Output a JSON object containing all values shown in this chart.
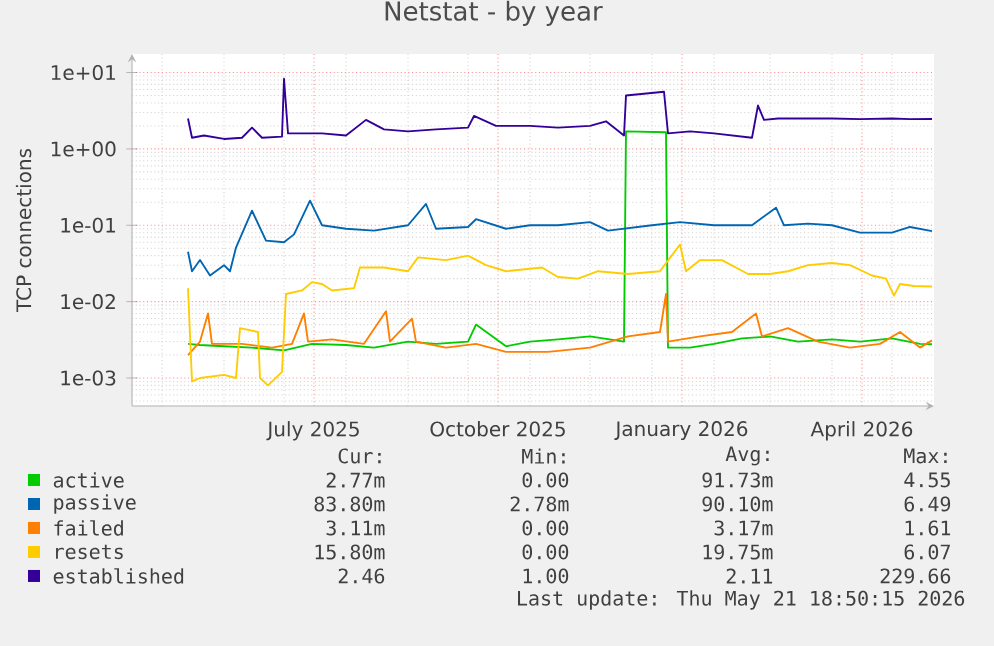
{
  "chart_data": {
    "type": "line",
    "title": "Netstat - by year",
    "ylabel": "TCP connections",
    "log": "y",
    "grid": true,
    "legend": "bottom",
    "xlim": [
      "2025-04-16",
      "2026-05-22"
    ],
    "xticks": [
      {
        "value": "2025-07-16",
        "label": "July 2025"
      },
      {
        "value": "2025-10-16",
        "label": "October 2025"
      },
      {
        "value": "2026-01-16",
        "label": "January 2026"
      },
      {
        "value": "2026-04-16",
        "label": "April 2026"
      }
    ],
    "ylim": [
      0.00043,
      17.5
    ],
    "yticks": [
      {
        "value": 0.001,
        "label": "1e-03"
      },
      {
        "value": 0.01,
        "label": "1e-02"
      },
      {
        "value": 0.1,
        "label": "1e-01"
      },
      {
        "value": 1,
        "label": "1e+00"
      },
      {
        "value": 10,
        "label": "1e+01"
      }
    ],
    "series": [
      {
        "name": "active",
        "color": "#00cc00",
        "x": [
          "2025-05-14",
          "2025-05-20",
          "2025-06-01",
          "2025-06-15",
          "2025-07-01",
          "2025-07-15",
          "2025-08-01",
          "2025-08-15",
          "2025-09-01",
          "2025-09-15",
          "2025-10-01",
          "2025-10-05",
          "2025-10-20",
          "2025-11-01",
          "2025-11-15",
          "2025-12-01",
          "2025-12-18",
          "2025-12-19",
          "2026-01-08",
          "2026-01-09",
          "2026-01-20",
          "2026-02-01",
          "2026-02-15",
          "2026-03-01",
          "2026-03-15",
          "2026-04-01",
          "2026-04-15",
          "2026-05-01",
          "2026-05-15",
          "2026-05-21"
        ],
        "values": [
          0.0028,
          0.0027,
          0.0026,
          0.0025,
          0.0023,
          0.0028,
          0.0027,
          0.0025,
          0.003,
          0.0028,
          0.003,
          0.005,
          0.0026,
          0.003,
          0.0032,
          0.0035,
          0.003,
          1.7,
          1.65,
          0.0025,
          0.0025,
          0.0028,
          0.0033,
          0.0035,
          0.003,
          0.0032,
          0.003,
          0.0033,
          0.0028,
          0.00277
        ]
      },
      {
        "name": "passive",
        "color": "#0066b3",
        "x": [
          "2025-05-14",
          "2025-05-16",
          "2025-05-20",
          "2025-05-25",
          "2025-06-01",
          "2025-06-04",
          "2025-06-07",
          "2025-06-15",
          "2025-06-22",
          "2025-07-01",
          "2025-07-06",
          "2025-07-14",
          "2025-07-20",
          "2025-08-01",
          "2025-08-15",
          "2025-09-01",
          "2025-09-10",
          "2025-09-15",
          "2025-10-01",
          "2025-10-05",
          "2025-10-20",
          "2025-11-01",
          "2025-11-15",
          "2025-12-01",
          "2025-12-10",
          "2026-01-01",
          "2026-01-15",
          "2026-02-01",
          "2026-02-20",
          "2026-03-04",
          "2026-03-08",
          "2026-03-20",
          "2026-04-01",
          "2026-04-15",
          "2026-05-01",
          "2026-05-10",
          "2026-05-21"
        ],
        "values": [
          0.045,
          0.025,
          0.035,
          0.022,
          0.03,
          0.025,
          0.051,
          0.155,
          0.063,
          0.06,
          0.076,
          0.21,
          0.1,
          0.09,
          0.085,
          0.1,
          0.19,
          0.09,
          0.095,
          0.12,
          0.09,
          0.1,
          0.1,
          0.11,
          0.085,
          0.1,
          0.11,
          0.1,
          0.1,
          0.17,
          0.1,
          0.105,
          0.1,
          0.08,
          0.08,
          0.095,
          0.0838
        ]
      },
      {
        "name": "failed",
        "color": "#ff8000",
        "x": [
          "2025-05-14",
          "2025-05-20",
          "2025-05-24",
          "2025-05-26",
          "2025-06-10",
          "2025-06-25",
          "2025-07-05",
          "2025-07-11",
          "2025-07-13",
          "2025-07-25",
          "2025-08-10",
          "2025-08-21",
          "2025-08-23",
          "2025-09-03",
          "2025-09-05",
          "2025-09-20",
          "2025-10-05",
          "2025-10-20",
          "2025-11-10",
          "2025-12-01",
          "2025-12-20",
          "2026-01-05",
          "2026-01-08",
          "2026-01-09",
          "2026-01-25",
          "2026-02-10",
          "2026-02-22",
          "2026-02-25",
          "2026-03-10",
          "2026-03-25",
          "2026-04-10",
          "2026-04-25",
          "2026-05-05",
          "2026-05-15",
          "2026-05-21"
        ],
        "values": [
          0.002,
          0.003,
          0.007,
          0.0028,
          0.0028,
          0.0025,
          0.0028,
          0.007,
          0.003,
          0.0032,
          0.0028,
          0.0075,
          0.003,
          0.006,
          0.003,
          0.0025,
          0.0028,
          0.0022,
          0.0022,
          0.0025,
          0.0035,
          0.004,
          0.0126,
          0.003,
          0.0035,
          0.004,
          0.007,
          0.0035,
          0.0045,
          0.003,
          0.0025,
          0.0028,
          0.004,
          0.0025,
          0.00311
        ]
      },
      {
        "name": "resets",
        "color": "#ffcc00",
        "x": [
          "2025-05-14",
          "2025-05-16",
          "2025-05-20",
          "2025-06-01",
          "2025-06-07",
          "2025-06-09",
          "2025-06-18",
          "2025-06-19",
          "2025-06-23",
          "2025-06-30",
          "2025-07-02",
          "2025-07-10",
          "2025-07-15",
          "2025-07-20",
          "2025-07-25",
          "2025-08-05",
          "2025-08-08",
          "2025-08-20",
          "2025-09-01",
          "2025-09-06",
          "2025-09-20",
          "2025-10-01",
          "2025-10-10",
          "2025-10-20",
          "2025-11-07",
          "2025-11-15",
          "2025-11-25",
          "2025-12-05",
          "2025-12-20",
          "2026-01-05",
          "2026-01-15",
          "2026-01-18",
          "2026-01-25",
          "2026-02-05",
          "2026-02-18",
          "2026-03-01",
          "2026-03-10",
          "2026-03-20",
          "2026-04-01",
          "2026-04-10",
          "2026-04-21",
          "2026-04-28",
          "2026-05-02",
          "2026-05-05",
          "2026-05-12",
          "2026-05-21"
        ],
        "values": [
          0.015,
          0.0009,
          0.001,
          0.0011,
          0.001,
          0.0045,
          0.004,
          0.001,
          0.0008,
          0.0012,
          0.0126,
          0.014,
          0.018,
          0.017,
          0.014,
          0.015,
          0.028,
          0.028,
          0.025,
          0.038,
          0.035,
          0.04,
          0.03,
          0.025,
          0.028,
          0.021,
          0.02,
          0.025,
          0.023,
          0.025,
          0.056,
          0.025,
          0.035,
          0.035,
          0.023,
          0.023,
          0.025,
          0.03,
          0.032,
          0.03,
          0.022,
          0.02,
          0.012,
          0.017,
          0.016,
          0.0158
        ]
      },
      {
        "name": "established",
        "color": "#330099",
        "x": [
          "2025-05-14",
          "2025-05-16",
          "2025-05-22",
          "2025-06-01",
          "2025-06-10",
          "2025-06-15",
          "2025-06-20",
          "2025-06-30",
          "2025-07-01",
          "2025-07-03",
          "2025-07-20",
          "2025-08-01",
          "2025-08-11",
          "2025-08-20",
          "2025-09-01",
          "2025-09-15",
          "2025-10-01",
          "2025-10-04",
          "2025-10-15",
          "2025-11-01",
          "2025-11-15",
          "2025-12-01",
          "2025-12-09",
          "2025-12-18",
          "2025-12-19",
          "2026-01-07",
          "2026-01-09",
          "2026-01-20",
          "2026-02-01",
          "2026-02-20",
          "2026-02-23",
          "2026-02-26",
          "2026-03-05",
          "2026-03-20",
          "2026-04-01",
          "2026-04-15",
          "2026-05-01",
          "2026-05-10",
          "2026-05-21"
        ],
        "values": [
          2.5,
          1.4,
          1.5,
          1.35,
          1.4,
          1.9,
          1.4,
          1.45,
          8.3,
          1.6,
          1.6,
          1.5,
          2.4,
          1.8,
          1.7,
          1.8,
          1.9,
          2.7,
          2.0,
          2.0,
          1.9,
          2.0,
          2.3,
          1.5,
          5.0,
          5.6,
          1.6,
          1.7,
          1.6,
          1.4,
          3.7,
          2.4,
          2.5,
          2.5,
          2.5,
          2.45,
          2.5,
          2.45,
          2.46
        ]
      }
    ],
    "annotations": [
      "Cur:",
      "Min:",
      "Avg:",
      "Max:",
      "2.77m",
      "0.00",
      "91.73m",
      "4.55",
      "83.80m",
      "2.78m",
      "90.10m",
      "6.49",
      "3.11m",
      "0.00",
      "3.17m",
      "1.61",
      "15.80m",
      "0.00",
      "19.75m",
      "6.07",
      "2.46",
      "1.00",
      "2.11",
      "229.66",
      "Last update: Thu May 21 18:50:15 2026"
    ]
  }
}
